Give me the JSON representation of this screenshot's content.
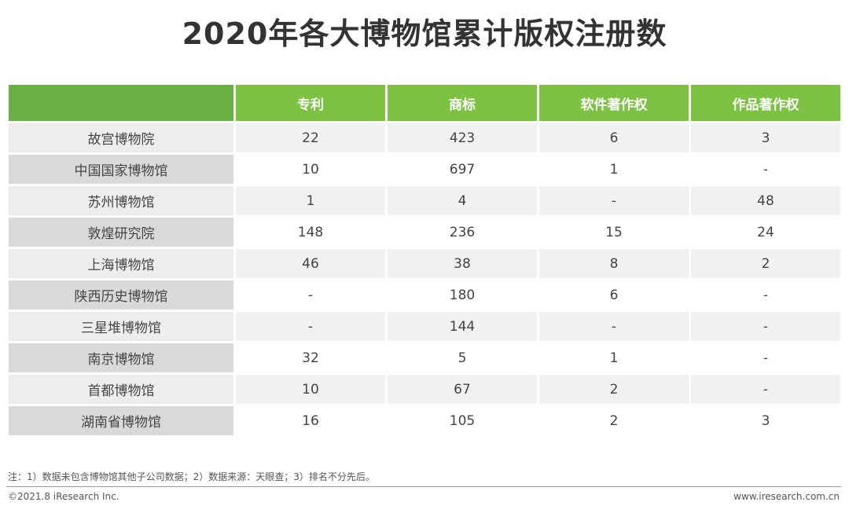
{
  "chart_data": {
    "type": "table",
    "title": "2020年各大博物馆累计版权注册数",
    "columns": [
      "专利",
      "商标",
      "软件著作权",
      "作品著作权"
    ],
    "rows": [
      {
        "name": "故宫博物院",
        "values": [
          "22",
          "423",
          "6",
          "3"
        ]
      },
      {
        "name": "中国国家博物馆",
        "values": [
          "10",
          "697",
          "1",
          "-"
        ]
      },
      {
        "name": "苏州博物馆",
        "values": [
          "1",
          "4",
          "-",
          "48"
        ]
      },
      {
        "name": "敦煌研究院",
        "values": [
          "148",
          "236",
          "15",
          "24"
        ]
      },
      {
        "name": "上海博物馆",
        "values": [
          "46",
          "38",
          "8",
          "2"
        ]
      },
      {
        "name": "陕西历史博物馆",
        "values": [
          "-",
          "180",
          "6",
          "-"
        ]
      },
      {
        "name": "三星堆博物馆",
        "values": [
          "-",
          "144",
          "-",
          "-"
        ]
      },
      {
        "name": "南京博物馆",
        "values": [
          "32",
          "5",
          "1",
          "-"
        ]
      },
      {
        "name": "首都博物馆",
        "values": [
          "10",
          "67",
          "2",
          "-"
        ]
      },
      {
        "name": "湖南省博物馆",
        "values": [
          "16",
          "105",
          "2",
          "3"
        ]
      }
    ]
  },
  "footer": {
    "note": "注：1）数据未包含博物馆其他子公司数据；2）数据来源：天眼查；3）排名不分先后。",
    "copyright": "©2021.8 iResearch Inc.",
    "website": "www.iresearch.com.cn"
  },
  "colors": {
    "header_green": "#7dc243",
    "corner_green": "#6ab245",
    "row_name_dark": "#d9d9d9",
    "row_name_light": "#ededed",
    "cell_light": "#f1f1f1"
  }
}
